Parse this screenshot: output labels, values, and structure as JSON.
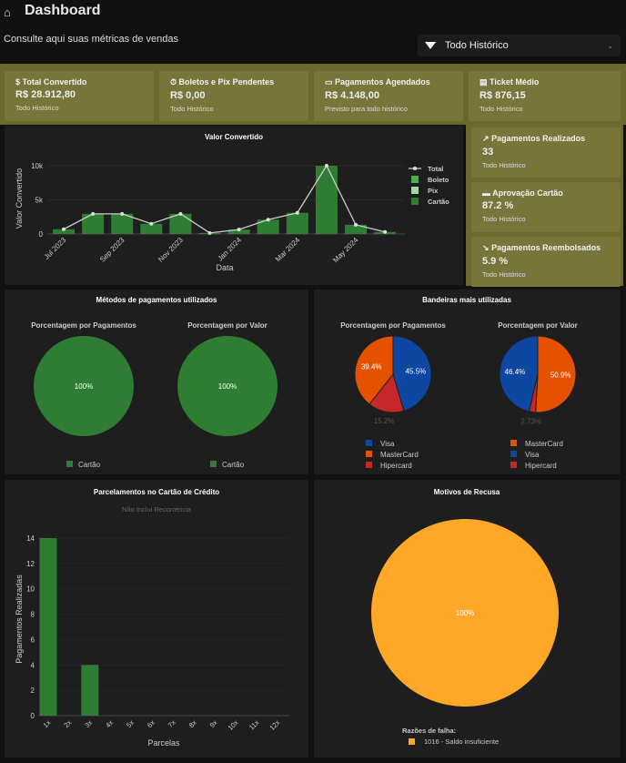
{
  "header": {
    "title": "Dashboard",
    "home_icon": "home-icon",
    "subtitle": "Consulte aqui suas métricas de vendas",
    "filter": {
      "icon": "filter-icon",
      "selected": "Todo Histórico"
    }
  },
  "kpis": [
    {
      "icon": "$",
      "label": "Total Convertido",
      "value": "R$ 28.912,80",
      "sub": "Todo Histórico"
    },
    {
      "icon": "⏱",
      "label": "Boletos e Pix Pendentes",
      "value": "R$ 0,00",
      "sub": "Todo Histórico"
    },
    {
      "icon": "▭",
      "label": "Pagamentos Agendados",
      "value": "R$ 4.148,00",
      "sub": "Previsto para todo histórico"
    },
    {
      "icon": "▤",
      "label": "Ticket Médio",
      "value": "R$ 876,15",
      "sub": "Todo Histórico"
    },
    {
      "icon": "↗",
      "label": "Pagamentos Realizados",
      "value": "33",
      "sub": "Todo Histórico"
    },
    {
      "icon": "▬",
      "label": "Aprovação Cartão",
      "value": "87.2 %",
      "sub": "Todo Histórico"
    },
    {
      "icon": "↘",
      "label": "Pagamentos Reembolsados",
      "value": "5.9 %",
      "sub": "Todo Histórico"
    }
  ],
  "colors": {
    "olive": "#6b6930",
    "green": "#2e7d32",
    "visa": "#0d47a1",
    "mastercard": "#e65100",
    "hipercard": "#c62828",
    "orange": "#ffa726"
  },
  "chart_data": [
    {
      "type": "bar",
      "title": "Valor Convertido",
      "xlabel": "Data",
      "ylabel": "Valor Convertido",
      "ylim": [
        0,
        10000
      ],
      "yticks": [
        "0",
        "5k",
        "10k"
      ],
      "categories": [
        "Jul 2023",
        "Aug 2023",
        "Sep 2023",
        "Oct 2023",
        "Nov 2023",
        "Dec 2023",
        "Jan 2024",
        "Feb 2024",
        "Mar 2024",
        "Apr 2024",
        "May 2024",
        "Jun 2024"
      ],
      "xtick_labels": [
        "Jul 2023",
        "Sep 2023",
        "Nov 2023",
        "Jan 2024",
        "Mar 2024",
        "May 2024"
      ],
      "legend": [
        "Total",
        "Boleto",
        "Pix",
        "Cartão"
      ],
      "series": [
        {
          "name": "Cartão",
          "values": [
            700,
            2950,
            2950,
            1500,
            2950,
            150,
            650,
            2100,
            3100,
            10000,
            1350,
            300
          ]
        },
        {
          "name": "Total",
          "type": "line",
          "values": [
            700,
            2950,
            2950,
            1500,
            2950,
            150,
            650,
            2100,
            3100,
            10000,
            1350,
            300
          ]
        }
      ]
    },
    {
      "type": "pie",
      "title": "Métodos de pagamentos utilizados",
      "subtitle": "Porcentagem por Pagamentos",
      "labels": [
        "Cartão"
      ],
      "values": [
        100
      ],
      "text": [
        "100%"
      ]
    },
    {
      "type": "pie",
      "subtitle": "Porcentagem por Valor",
      "labels": [
        "Cartão"
      ],
      "values": [
        100
      ],
      "text": [
        "100%"
      ]
    },
    {
      "type": "pie",
      "title": "Bandeiras mais utilizadas",
      "subtitle": "Porcentagem por Pagamentos",
      "labels": [
        "Visa",
        "Hipercard",
        "MasterCard"
      ],
      "legend": [
        "Visa",
        "MasterCard",
        "Hipercard"
      ],
      "values": [
        45.5,
        15.2,
        39.4
      ],
      "text": [
        "45.5%",
        "15.2%",
        "39.4%"
      ]
    },
    {
      "type": "pie",
      "subtitle": "Porcentagem por Valor",
      "labels": [
        "MasterCard",
        "Hipercard",
        "Visa"
      ],
      "legend": [
        "MasterCard",
        "Visa",
        "Hipercard"
      ],
      "values": [
        50.9,
        2.73,
        46.4
      ],
      "text": [
        "50.9%",
        "2.73%",
        "46.4%"
      ]
    },
    {
      "type": "bar",
      "title": "Parcelamentos no Cartão de Crédito",
      "subtitle": "Não Inclui Recorrencia",
      "xlabel": "Parcelas",
      "ylabel": "Pagamentos Realizadas",
      "ylim": [
        0,
        14
      ],
      "yticks": [
        "0",
        "2",
        "4",
        "6",
        "8",
        "10",
        "12",
        "14"
      ],
      "categories": [
        "1x",
        "2x",
        "3x",
        "4x",
        "5x",
        "6x",
        "7x",
        "8x",
        "9x",
        "10x",
        "11x",
        "12x"
      ],
      "values": [
        14,
        0,
        4,
        0,
        0,
        0,
        0,
        0,
        0,
        0,
        0,
        0
      ]
    },
    {
      "type": "pie",
      "title": "Motivos de Recusa",
      "legend_title": "Razões de falha:",
      "labels": [
        "1016 - Saldo insuficiente"
      ],
      "values": [
        100
      ],
      "text": [
        "100%"
      ]
    }
  ]
}
